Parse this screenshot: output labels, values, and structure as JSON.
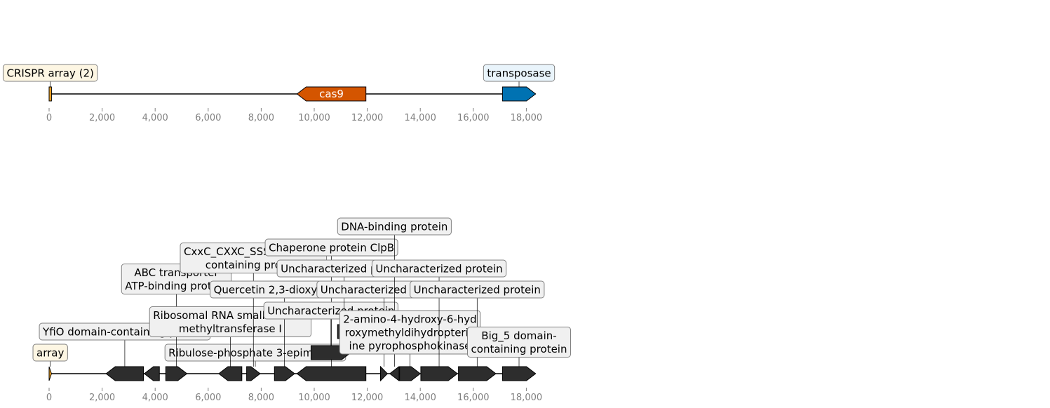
{
  "colors": {
    "array": "#f5a623",
    "cas9": "#d45500",
    "transposase": "#0072b2",
    "gene": "#2d2d2d",
    "array_box": "#fdf6e3",
    "cas9_box": "#fdf6e3",
    "transposase_box": "#e9f4fb",
    "gene_box": "#f0f0f0"
  },
  "tracks": [
    {
      "id": "top",
      "features": [
        {
          "name": "crispr-array-feature",
          "start": 0,
          "end": 90,
          "strand": 0,
          "color": "array",
          "label": "CRISPR array (2)",
          "box": "array_box"
        },
        {
          "name": "cas9-feature",
          "start": 9350,
          "end": 11950,
          "strand": -1,
          "color": "cas9",
          "inner_label": "cas9"
        },
        {
          "name": "transposase-feature",
          "start": 17100,
          "end": 18350,
          "strand": 1,
          "color": "transposase",
          "label": "transposase",
          "box": "transposase_box"
        }
      ]
    },
    {
      "id": "bottom",
      "features": [
        {
          "name": "array-feature",
          "start": 0,
          "end": 90,
          "strand": 1,
          "color": "array",
          "label": "array",
          "box": "array_box"
        },
        {
          "name": "yfio-feature",
          "start": 2150,
          "end": 3560,
          "strand": -1,
          "color": "gene",
          "label": "YfiO domain-containing protein",
          "box": "gene_box"
        },
        {
          "name": "ribulose-feature",
          "start": 3590,
          "end": 4160,
          "strand": -1,
          "color": "gene",
          "label": "Ribulose-phosphate 3-epimerase",
          "box": "gene_box"
        },
        {
          "name": "abc-feature",
          "start": 4400,
          "end": 5200,
          "strand": 1,
          "color": "gene",
          "label": "ABC transporter\nATP-binding protein",
          "box": "gene_box"
        },
        {
          "name": "ribosomal-feature",
          "start": 6400,
          "end": 7270,
          "strand": -1,
          "color": "gene",
          "label": "Ribosomal RNA small subunit\nmethyltransferase I",
          "box": "gene_box"
        },
        {
          "name": "cxxc-feature",
          "start": 7450,
          "end": 7960,
          "strand": 1,
          "color": "gene",
          "label": "CxxC_CXXC_SSSS domain-\ncontaining protein",
          "box": "gene_box"
        },
        {
          "name": "quercetin-feature",
          "start": 8500,
          "end": 9260,
          "strand": 1,
          "color": "gene",
          "label": "Quercetin 2,3-dioxygenase",
          "box": "gene_box"
        },
        {
          "name": "clpb-feature",
          "start": 9350,
          "end": 11950,
          "strand": -1,
          "color": "gene",
          "label": "Chaperone protein ClpB",
          "box": "gene_box"
        },
        {
          "name": "uncharacterized-1-feature",
          "start": 9880,
          "end": 11380,
          "strand": 1,
          "color": "gene",
          "label": "Uncharacterized protein",
          "box": "gene_box"
        },
        {
          "name": "uncharacterized-2-feature",
          "start": 10880,
          "end": 11380,
          "strand": 1,
          "color": "gene",
          "label": "Uncharacterized protein",
          "box": "gene_box"
        },
        {
          "name": "uncharacterized-3-feature",
          "start": 12500,
          "end": 12760,
          "strand": 1,
          "color": "gene",
          "label": "Uncharacterized protein",
          "box": "gene_box"
        },
        {
          "name": "dna-binding-feature",
          "start": 12850,
          "end": 13200,
          "strand": -1,
          "color": "gene",
          "label": "DNA-binding protein",
          "box": "gene_box"
        },
        {
          "name": "pyrophosphokinase-feature",
          "start": 13220,
          "end": 14000,
          "strand": 1,
          "color": "gene",
          "label": "2-amino-4-hydroxy-6-hyd\nroxymethyldihydropterid\nine pyrophosphokinase",
          "box": "gene_box"
        },
        {
          "name": "uncharacterized-4-feature",
          "start": 14020,
          "end": 15400,
          "strand": 1,
          "color": "gene",
          "label": "Uncharacterized protein",
          "box": "gene_box"
        },
        {
          "name": "uncharacterized-5-feature",
          "start": 15440,
          "end": 16850,
          "strand": 1,
          "color": "gene",
          "label": "Uncharacterized protein",
          "box": "gene_box"
        },
        {
          "name": "big5-feature",
          "start": 17100,
          "end": 18350,
          "strand": 1,
          "color": "gene",
          "label": "Big_5 domain-\ncontaining protein",
          "box": "gene_box"
        }
      ]
    }
  ],
  "axis": {
    "ticks": [
      0,
      2000,
      4000,
      6000,
      8000,
      10000,
      12000,
      14000,
      16000,
      18000
    ],
    "tick_labels": [
      "0",
      "2,000",
      "4,000",
      "6,000",
      "8,000",
      "10,000",
      "12,000",
      "14,000",
      "16,000",
      "18,000"
    ]
  }
}
